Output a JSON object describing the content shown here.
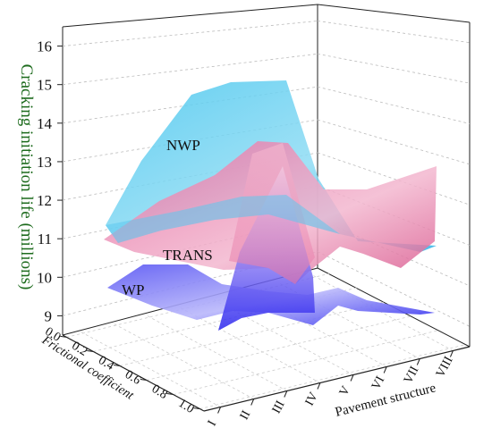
{
  "chart_data": {
    "type": "surface3d",
    "title": "",
    "zlabel": "Cracking initiation life (millions)",
    "ylabel": "Frictional coefficient",
    "xlabel": "Pavement structure",
    "zlim": [
      8.5,
      16.5
    ],
    "z_ticks": [
      "9",
      "10",
      "11",
      "12",
      "13",
      "14",
      "15",
      "16"
    ],
    "y_ticks": [
      "0.0",
      "0.2",
      "0.4",
      "0.6",
      "0.8",
      "1.0"
    ],
    "x_ticks": [
      "I",
      "II",
      "III",
      "IV",
      "V",
      "VI",
      "VII",
      "VIII"
    ],
    "grid": true,
    "series": [
      {
        "name": "NWP",
        "values_at_front": [
          11.8,
          13.0,
          13.4,
          14.1,
          14.3,
          13.9,
          13.5,
          13.2
        ],
        "values_at_back": [
          11.0,
          12.4,
          12.8,
          13.6,
          13.8,
          12.3,
          11.9,
          11.6
        ],
        "color": "#3fc2ec"
      },
      {
        "name": "TRANS",
        "values_at_front": [
          10.2,
          10.6,
          10.8,
          13.3,
          10.9,
          10.6,
          11.1,
          11.5
        ],
        "values_at_back": [
          10.1,
          10.4,
          10.6,
          11.5,
          10.5,
          10.1,
          10.8,
          11.3
        ],
        "color": "#e06a9a"
      },
      {
        "name": "WP",
        "values_at_front": [
          9.3,
          9.6,
          9.5,
          12.6,
          9.5,
          9.4,
          9.3,
          9.2
        ],
        "values_at_back": [
          9.2,
          9.4,
          9.8,
          10.2,
          9.1,
          9.1,
          9.0,
          9.0
        ],
        "color": "#3433f0"
      }
    ]
  }
}
